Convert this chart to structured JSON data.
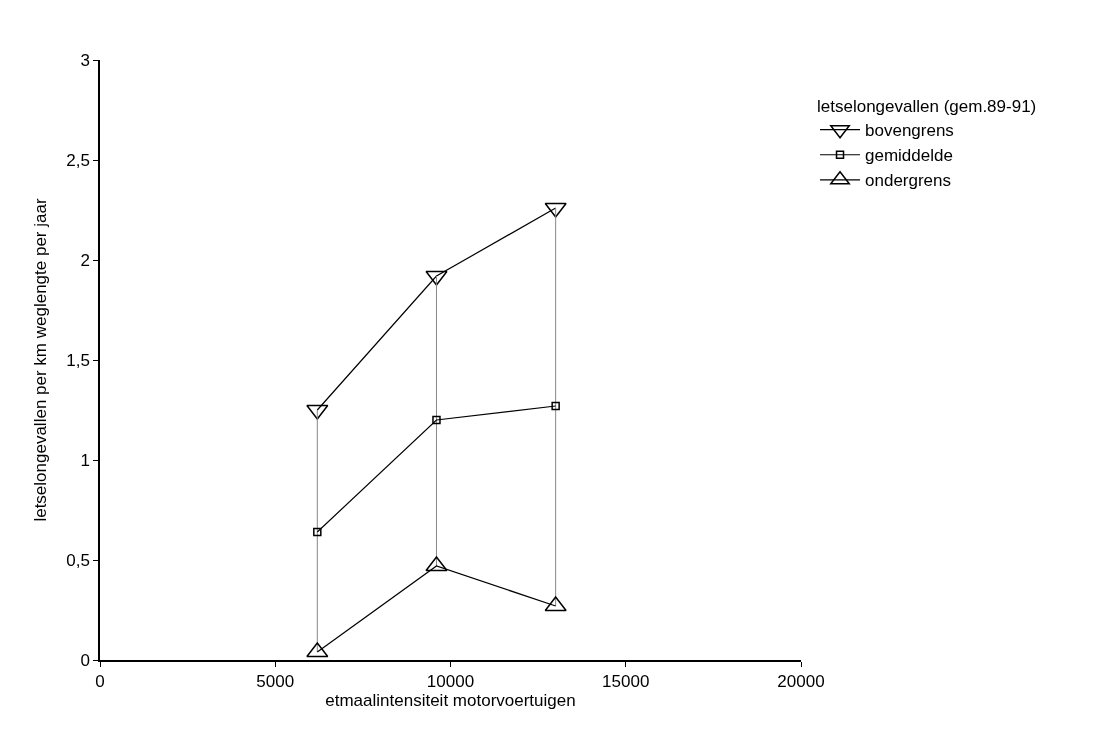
{
  "chart_data": {
    "type": "line",
    "xlabel": "etmaalintensiteit motorvoertuigen",
    "ylabel": "letselongevallen per km weglengte per jaar",
    "legend_title": "letselongevallen (gem.89-91)",
    "x": [
      6200,
      9600,
      13000
    ],
    "series": [
      {
        "name": "bovengrens",
        "color": "#000000",
        "marker": "triangle-down",
        "values": [
          1.25,
          1.92,
          2.26
        ]
      },
      {
        "name": "gemiddelde",
        "color": "#000000",
        "marker": "square",
        "values": [
          0.64,
          1.2,
          1.27
        ],
        "errors": [
          [
            0.04,
            1.25
          ],
          [
            0.47,
            1.92
          ],
          [
            0.27,
            2.26
          ]
        ]
      },
      {
        "name": "ondergrens",
        "color": "#000000",
        "marker": "triangle",
        "values": [
          0.04,
          0.47,
          0.27
        ]
      }
    ],
    "xlim": [
      0,
      20000
    ],
    "xticks": [
      0,
      5000,
      10000,
      15000,
      20000
    ],
    "ylim": [
      0,
      3
    ],
    "yticks": [
      0,
      {
        "value": 0.5,
        "label": "0,5"
      },
      1,
      {
        "value": 1.5,
        "label": "1,5"
      },
      2,
      {
        "value": 2.5,
        "label": "2,5"
      },
      3
    ],
    "legend": "top right",
    "line_style": "solid"
  }
}
